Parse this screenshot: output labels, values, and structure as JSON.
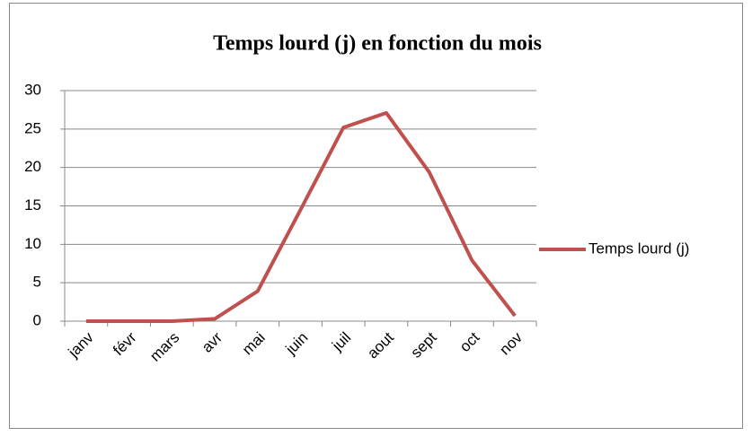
{
  "chart_data": {
    "type": "line",
    "title": "Temps lourd (j) en fonction du mois",
    "categories": [
      "janv",
      "févr",
      "mars",
      "avr",
      "mai",
      "juin",
      "juil",
      "aout",
      "sept",
      "oct",
      "nov"
    ],
    "series": [
      {
        "name": "Temps lourd (j)",
        "color": "#c0504d",
        "values": [
          0,
          0,
          0,
          0.3,
          3.9,
          14.5,
          25.2,
          27.1,
          19.4,
          7.9,
          0.7
        ]
      }
    ],
    "ylim": [
      0,
      30
    ],
    "yticks": [
      0,
      5,
      10,
      15,
      20,
      25,
      30
    ],
    "grid": true,
    "legend": "right"
  }
}
